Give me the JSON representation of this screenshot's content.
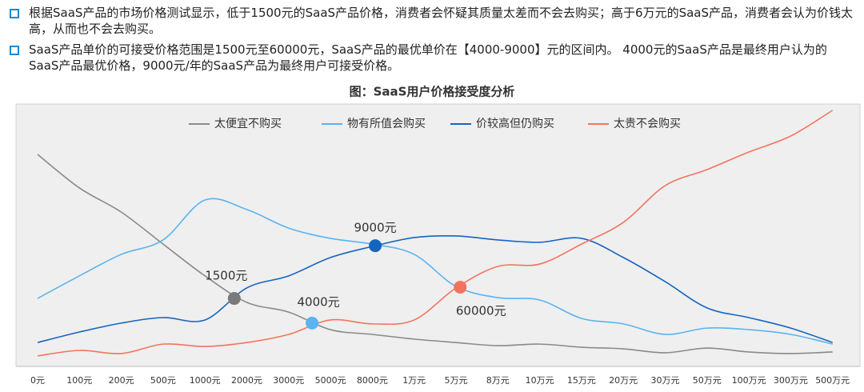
{
  "bullets": [
    "根据SaaS产品的市场价格测试显示，低于1500元的SaaS产品价格，消费者会怀疑其质量太差而不会去购买；高于6万元的SaaS产品，消费者会认为价钱太高，从而也不会去购买。",
    "SaaS产品单价的可接受价格范围是1500元至60000元，SaaS产品的最优单价在【4000-9000】元的区间内。 4000元的SaaS产品是最终用户认为的SaaS产品最优价格，9000元/年的SaaS产品为最终用户可接受价格。"
  ],
  "chart_data": {
    "type": "line",
    "title": "图：SaaS用户价格接受度分析",
    "categories": [
      "0元",
      "100元",
      "200元",
      "500元",
      "1000元",
      "2000元",
      "3000元",
      "5000元",
      "8000元",
      "1万元",
      "5万元",
      "8万元",
      "10万元",
      "15万元",
      "20万元",
      "30万元",
      "50万元",
      "100万元",
      "300万元",
      "500万元"
    ],
    "ylim": [
      0,
      100
    ],
    "smooth": true,
    "grid": false,
    "legend": "top",
    "series": [
      {
        "name": "太便宜不购买",
        "color": "#8a8a8a",
        "values": [
          80.8,
          68,
          58.8,
          46.6,
          34.5,
          24.4,
          20.7,
          14,
          12.2,
          10.4,
          9.1,
          7.9,
          8.5,
          7.3,
          6.7,
          5.2,
          7,
          5.5,
          4.9,
          5.5
        ]
      },
      {
        "name": "物有所值会购买",
        "color": "#5ab4f0",
        "values": [
          25.9,
          34.5,
          42.7,
          48.2,
          63.4,
          59.8,
          52.7,
          48.8,
          46.6,
          42.7,
          30.5,
          26.2,
          25.3,
          18.3,
          16.2,
          12.2,
          14.6,
          14,
          12.2,
          8.5
        ]
      },
      {
        "name": "价较高但仍购买",
        "color": "#1565c0",
        "values": [
          9.1,
          13.1,
          16.5,
          18.6,
          17.7,
          29.9,
          34.5,
          41.5,
          45.7,
          49.1,
          49.7,
          48.2,
          47.3,
          48.8,
          41.5,
          32.3,
          22.3,
          18.6,
          14.6,
          9.1
        ]
      },
      {
        "name": "太贵不会购买",
        "color": "#f4735e",
        "values": [
          4,
          6.1,
          4.9,
          8.5,
          7.6,
          9.1,
          12.2,
          17.7,
          16.2,
          17.7,
          29.9,
          38.1,
          39,
          46.6,
          54.9,
          68.9,
          75,
          81.7,
          87.8,
          97.6
        ]
      }
    ],
    "annotations": [
      {
        "label": "1500元",
        "x": 4.7,
        "y": 25.9,
        "color": "#7a7a7a"
      },
      {
        "label": "4000元",
        "x": 6.56,
        "y": 16.5,
        "color": "#5ab4f0"
      },
      {
        "label": "9000元",
        "x": 8.07,
        "y": 46,
        "color": "#1565c0"
      },
      {
        "label": "60000元",
        "x": 10.1,
        "y": 30.2,
        "color": "#f4735e"
      }
    ]
  }
}
